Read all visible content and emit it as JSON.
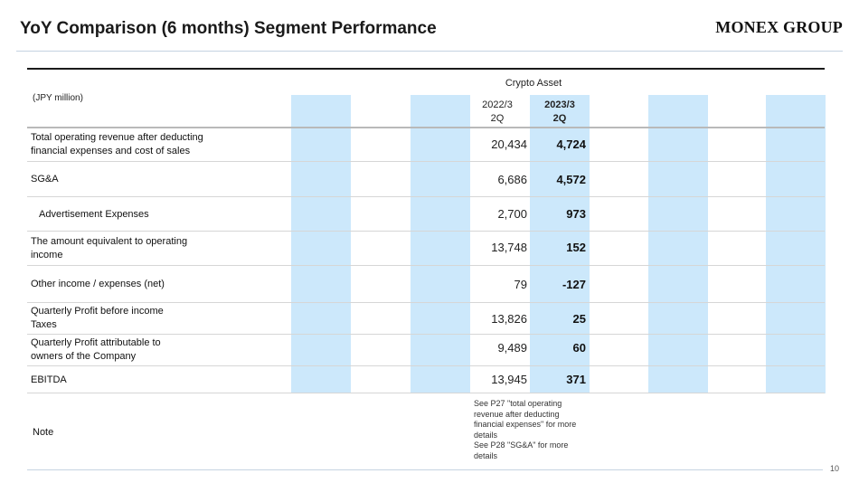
{
  "header": {
    "title": "YoY Comparison (6 months) Segment Performance",
    "logo": "MONEX GROUP"
  },
  "table": {
    "section_header": "Crypto Asset",
    "unit_label": "(JPY million)",
    "columns": [
      "2022/3\n2Q",
      "2023/3\n2Q"
    ],
    "shade_color": "#cce8fb",
    "rows": [
      {
        "label": "Total operating revenue after deducting\nfinancial expenses and cost of sales",
        "v2022": "20,434",
        "v2023": "4,724"
      },
      {
        "label": "SG&A",
        "v2022": "6,686",
        "v2023": "4,572"
      },
      {
        "label": "Advertisement Expenses",
        "v2022": "2,700",
        "v2023": "973"
      },
      {
        "label": "The amount equivalent to operating\nincome",
        "v2022": "13,748",
        "v2023": "152"
      },
      {
        "label": "Other income / expenses (net)",
        "v2022": "79",
        "v2023": "-127"
      },
      {
        "label": "Quarterly Profit before income\nTaxes",
        "v2022": "13,826",
        "v2023": "25"
      },
      {
        "label": "Quarterly Profit attributable to\nowners of the Company",
        "v2022": "9,489",
        "v2023": "60"
      },
      {
        "label": "EBITDA",
        "v2022": "13,945",
        "v2023": "371"
      }
    ],
    "note_label": "Note",
    "note_text": "See P27 \"total operating revenue after deducting financial expenses\" for more details\nSee P28 \"SG&A\" for more details"
  },
  "footer": {
    "page_number": "10"
  }
}
